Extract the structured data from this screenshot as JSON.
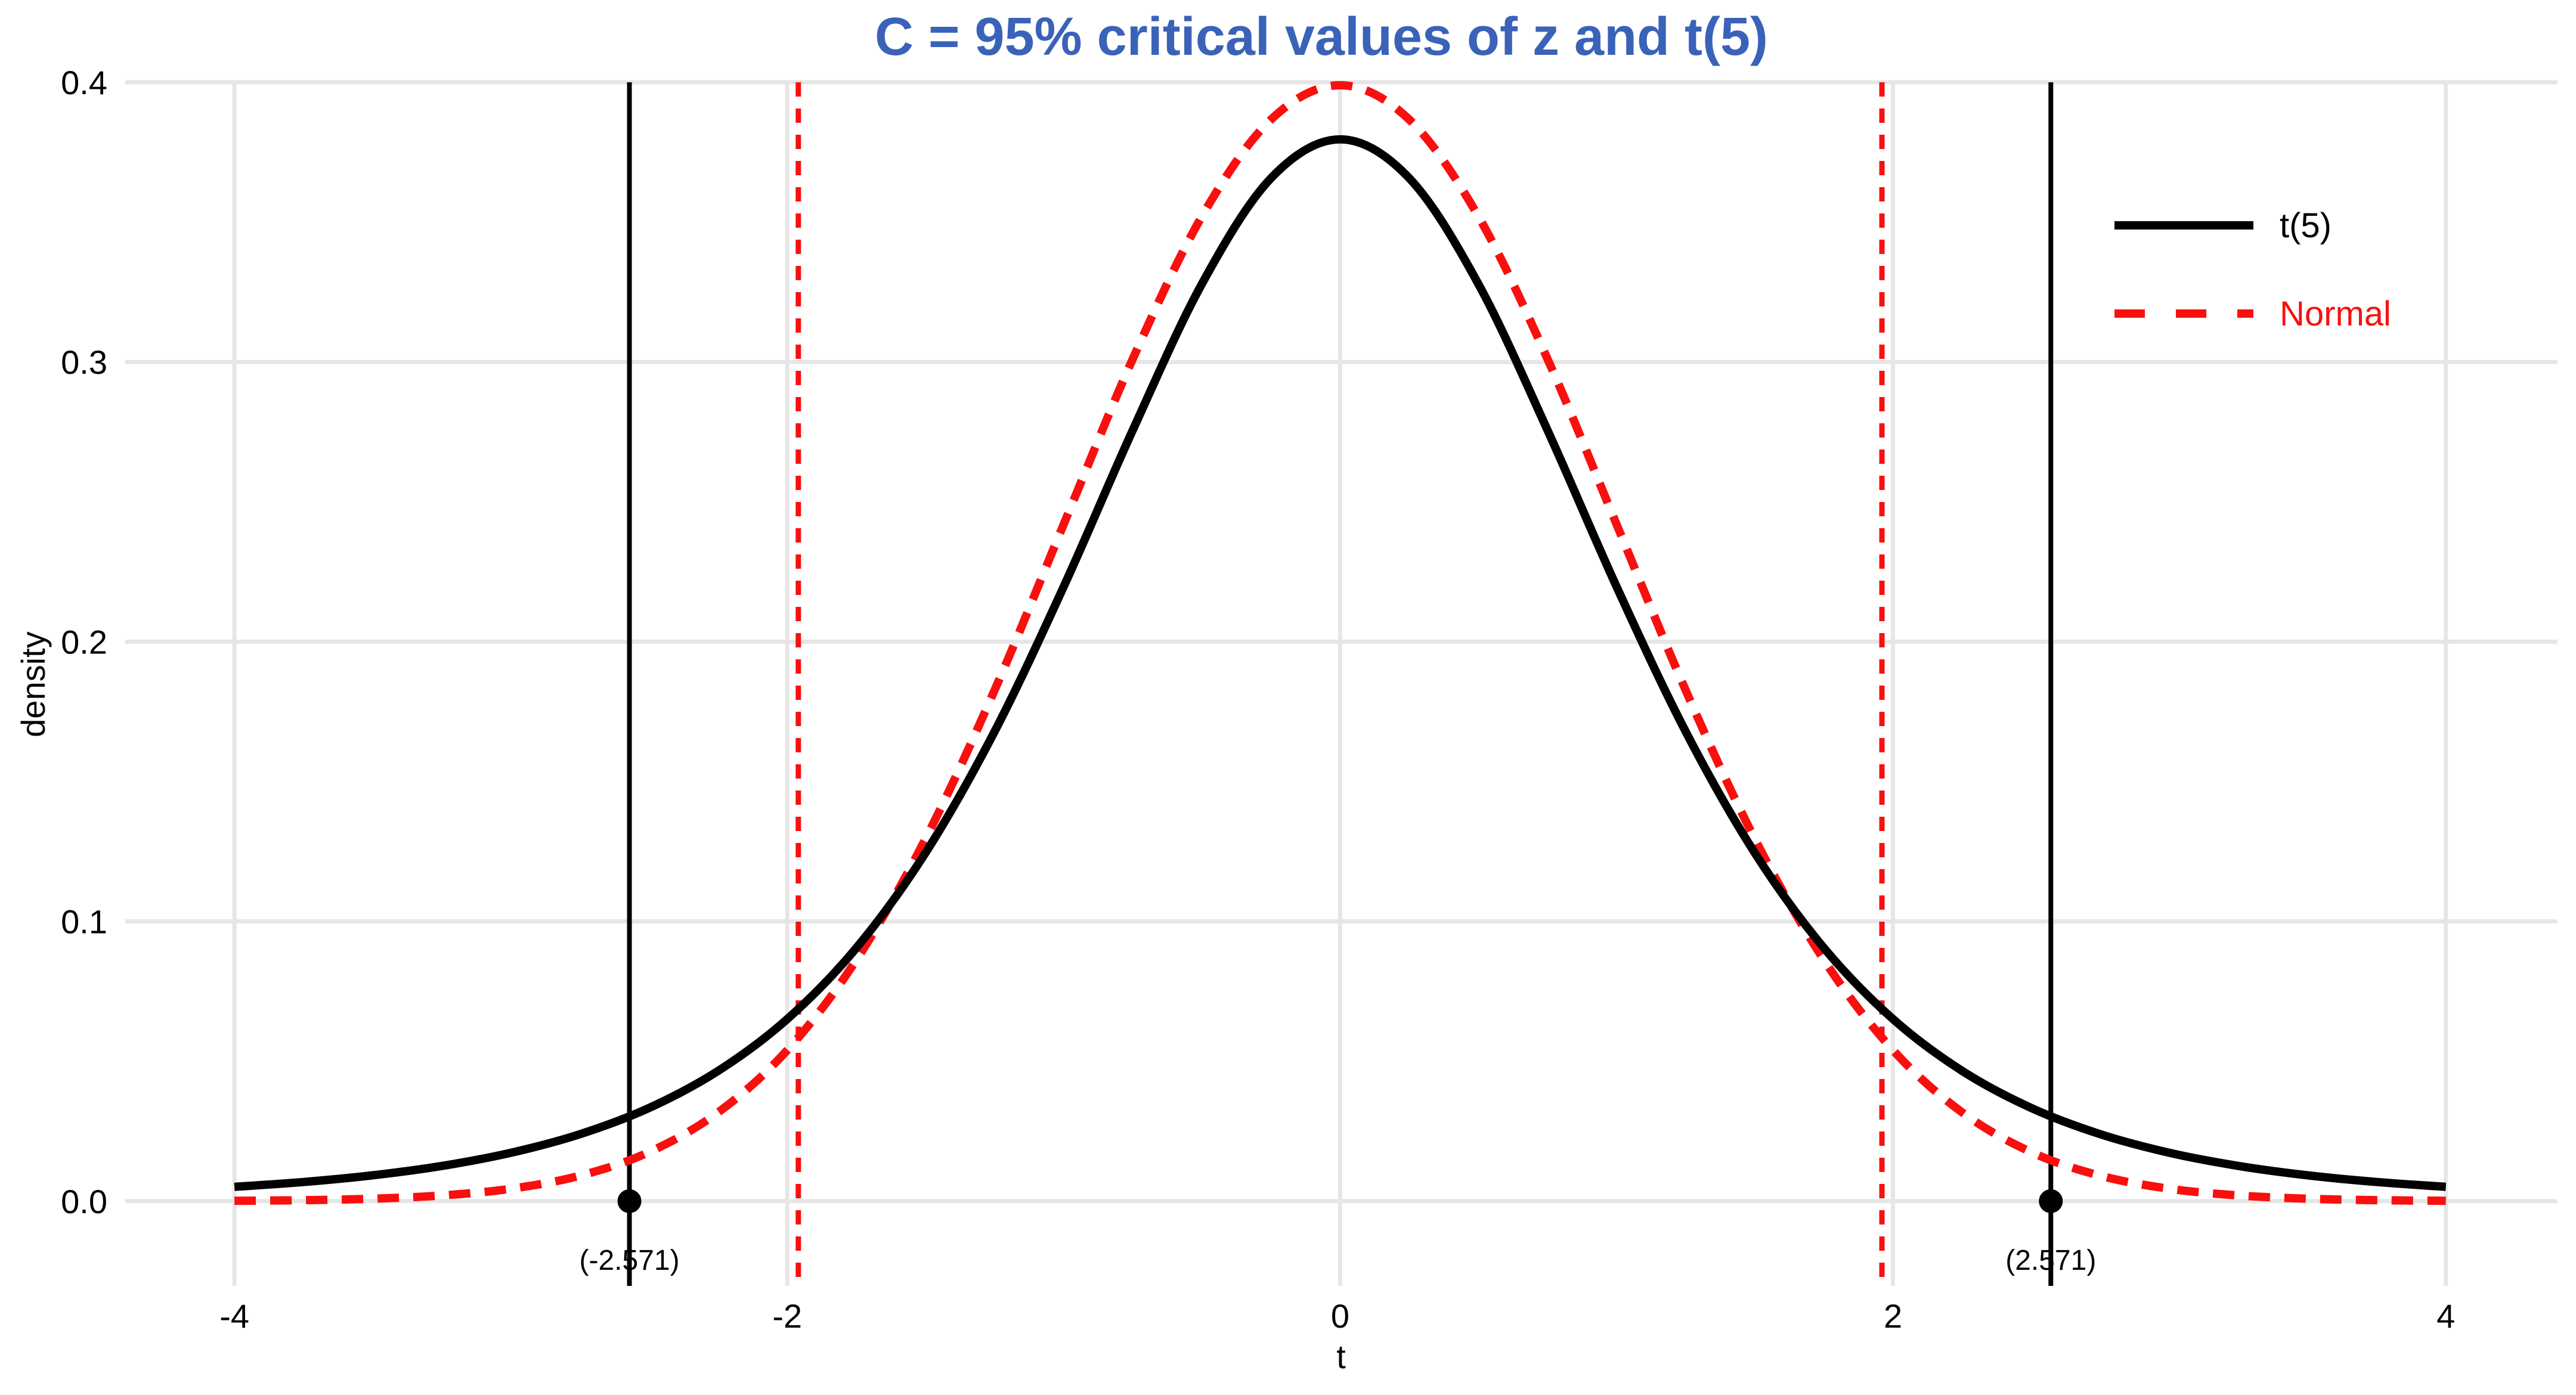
{
  "colors": {
    "title": "#3A62B8",
    "t5": "#000000",
    "normal": "#FA0F0F",
    "grid": "#E6E6E6",
    "text": "#000000",
    "background": "#FFFFFF"
  },
  "chart_data": {
    "type": "line",
    "title": "C = 95% critical values of z and t(5)",
    "xlabel": "t",
    "ylabel": "density",
    "xlim": [
      -4.395,
      4.404
    ],
    "ylim": [
      -0.0303,
      0.4
    ],
    "grid": {
      "major": true,
      "minor": false
    },
    "x_ticks": {
      "values": [
        -4,
        -2,
        0,
        2,
        4
      ],
      "labels": [
        "-4",
        "-2",
        "0",
        "2",
        "4"
      ]
    },
    "y_ticks": {
      "values": [
        0,
        0.1,
        0.2,
        0.3,
        0.4
      ],
      "labels": [
        "0.0",
        "0.1",
        "0.2",
        "0.3",
        "0.4"
      ]
    },
    "x": [
      -4,
      -3.75,
      -3.5,
      -3.25,
      -3,
      -2.75,
      -2.5,
      -2.25,
      -2,
      -1.75,
      -1.5,
      -1.25,
      -1,
      -0.75,
      -0.5,
      -0.25,
      0,
      0.25,
      0.5,
      0.75,
      1,
      1.25,
      1.5,
      1.75,
      2,
      2.25,
      2.5,
      2.75,
      3,
      3.25,
      3.5,
      3.75,
      4
    ],
    "series": [
      {
        "name": "t(5)",
        "color": "#000000",
        "style": "solid",
        "values": [
          0.00512,
          0.00685,
          0.00924,
          0.01259,
          0.01729,
          0.02393,
          0.03332,
          0.04657,
          0.06509,
          0.09054,
          0.12452,
          0.16789,
          0.21967,
          0.27567,
          0.32792,
          0.36572,
          0.37961,
          0.36572,
          0.32792,
          0.27567,
          0.21967,
          0.16789,
          0.12452,
          0.09054,
          0.06509,
          0.04657,
          0.03332,
          0.02393,
          0.01729,
          0.01259,
          0.00924,
          0.00685,
          0.00512
        ]
      },
      {
        "name": "Normal",
        "color": "#FA0F0F",
        "style": "dashed",
        "values": [
          0.00013,
          0.00035,
          0.00087,
          0.00203,
          0.00443,
          0.0091,
          0.01753,
          0.03174,
          0.05399,
          0.08625,
          0.12952,
          0.18265,
          0.24197,
          0.30114,
          0.35207,
          0.38667,
          0.39894,
          0.38667,
          0.35207,
          0.30114,
          0.24197,
          0.18265,
          0.12952,
          0.08625,
          0.05399,
          0.03174,
          0.01753,
          0.0091,
          0.00443,
          0.00203,
          0.00087,
          0.00035,
          0.00013
        ]
      }
    ],
    "critical_lines": [
      {
        "value": -2.571,
        "color": "#000000",
        "style": "solid",
        "point_at_zero": true,
        "label": "(-2.571)"
      },
      {
        "value": 2.571,
        "color": "#000000",
        "style": "solid",
        "point_at_zero": true,
        "label": "(2.571)"
      },
      {
        "value": -1.96,
        "color": "#FA0F0F",
        "style": "dashed",
        "point_at_zero": false,
        "label": ""
      },
      {
        "value": 1.96,
        "color": "#FA0F0F",
        "style": "dashed",
        "point_at_zero": false,
        "label": ""
      }
    ],
    "legend": {
      "position": "right-top-inside",
      "entries": [
        {
          "label": "t(5)",
          "color": "#000000",
          "style": "solid"
        },
        {
          "label": "Normal",
          "color": "#FA0F0F",
          "style": "dashed"
        }
      ]
    }
  }
}
